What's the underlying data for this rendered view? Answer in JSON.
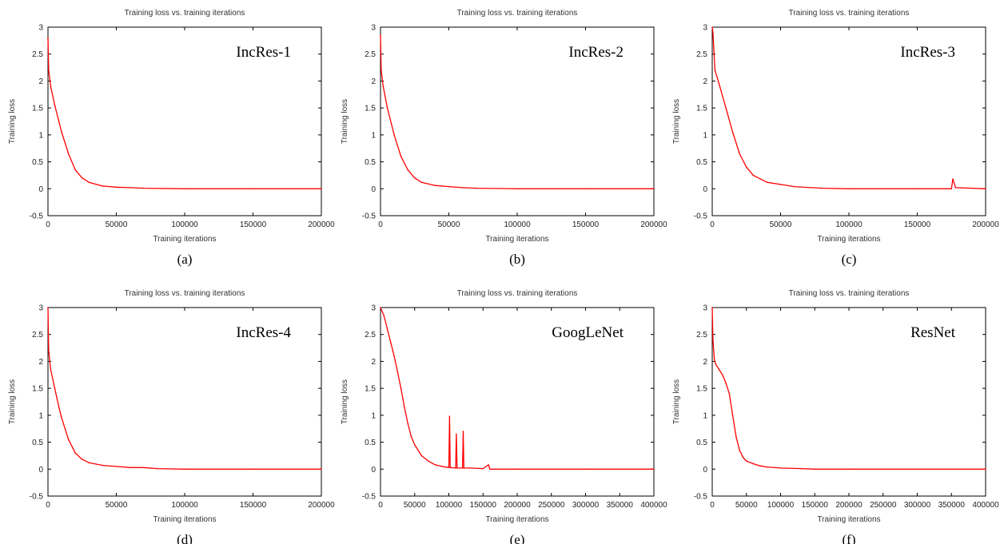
{
  "colors": {
    "series": "#ff0000",
    "axis": "#000000"
  },
  "chart_data": [
    {
      "type": "line",
      "panel": "(a)",
      "title": "Training loss vs. training iterations",
      "xlabel": "Training iterations",
      "ylabel": "Training loss",
      "xlim": [
        0,
        200000
      ],
      "ylim": [
        -0.5,
        3
      ],
      "xticks": [
        0,
        50000,
        100000,
        150000,
        200000
      ],
      "yticks": [
        -0.5,
        0,
        0.5,
        1,
        1.5,
        2,
        2.5,
        3
      ],
      "annotation": "IncRes-1",
      "grid": false,
      "series": [
        {
          "x": [
            0,
            500,
            2000,
            5000,
            8000,
            10000,
            15000,
            20000,
            25000,
            30000,
            40000,
            50000,
            60000,
            70000,
            100000,
            150000,
            200000
          ],
          "y": [
            2.8,
            2.2,
            1.9,
            1.55,
            1.25,
            1.05,
            0.65,
            0.35,
            0.2,
            0.12,
            0.05,
            0.03,
            0.02,
            0.01,
            0.0,
            0.0,
            0.0
          ]
        }
      ]
    },
    {
      "type": "line",
      "panel": "(b)",
      "title": "Training loss vs. training iterations",
      "xlabel": "Training iterations",
      "ylabel": "Training loss",
      "xlim": [
        0,
        200000
      ],
      "ylim": [
        -0.5,
        3
      ],
      "xticks": [
        0,
        50000,
        100000,
        150000,
        200000
      ],
      "yticks": [
        -0.5,
        0,
        0.5,
        1,
        1.5,
        2,
        2.5,
        3
      ],
      "annotation": "IncRes-2",
      "grid": false,
      "series": [
        {
          "x": [
            0,
            500,
            2000,
            5000,
            8000,
            10000,
            15000,
            20000,
            25000,
            30000,
            40000,
            50000,
            60000,
            70000,
            100000,
            150000,
            200000
          ],
          "y": [
            2.85,
            2.2,
            1.9,
            1.5,
            1.2,
            1.0,
            0.6,
            0.35,
            0.2,
            0.12,
            0.06,
            0.04,
            0.02,
            0.01,
            0.0,
            0.0,
            0.0
          ]
        }
      ]
    },
    {
      "type": "line",
      "panel": "(c)",
      "title": "Training loss vs. training iterations",
      "xlabel": "Training iterations",
      "ylabel": "Training loss",
      "xlim": [
        0,
        200000
      ],
      "ylim": [
        -0.5,
        3
      ],
      "xticks": [
        0,
        50000,
        100000,
        150000,
        200000
      ],
      "yticks": [
        -0.5,
        0,
        0.5,
        1,
        1.5,
        2,
        2.5,
        3
      ],
      "annotation": "IncRes-3",
      "grid": false,
      "series": [
        {
          "x": [
            0,
            500,
            2000,
            5000,
            10000,
            15000,
            20000,
            25000,
            30000,
            40000,
            50000,
            60000,
            80000,
            100000,
            150000,
            175000,
            176000,
            178000,
            200000
          ],
          "y": [
            3.0,
            2.9,
            2.2,
            1.95,
            1.5,
            1.05,
            0.65,
            0.4,
            0.25,
            0.12,
            0.08,
            0.04,
            0.01,
            0.0,
            0.0,
            0.0,
            0.18,
            0.02,
            0.0
          ]
        }
      ]
    },
    {
      "type": "line",
      "panel": "(d)",
      "title": "Training loss vs. training iterations",
      "xlabel": "Training iterations",
      "ylabel": "Training loss",
      "xlim": [
        0,
        200000
      ],
      "ylim": [
        -0.5,
        3
      ],
      "xticks": [
        0,
        50000,
        100000,
        150000,
        200000
      ],
      "yticks": [
        -0.5,
        0,
        0.5,
        1,
        1.5,
        2,
        2.5,
        3
      ],
      "annotation": "IncRes-4",
      "grid": false,
      "series": [
        {
          "x": [
            0,
            500,
            2000,
            5000,
            8000,
            10000,
            15000,
            20000,
            25000,
            30000,
            40000,
            50000,
            60000,
            70000,
            80000,
            100000,
            150000,
            200000
          ],
          "y": [
            3.0,
            2.2,
            1.85,
            1.5,
            1.15,
            0.95,
            0.55,
            0.3,
            0.18,
            0.12,
            0.07,
            0.05,
            0.03,
            0.03,
            0.01,
            0.0,
            0.0,
            0.0
          ]
        }
      ]
    },
    {
      "type": "line",
      "panel": "(e)",
      "title": "Training loss vs. training iterations",
      "xlabel": "Training iterations",
      "ylabel": "Training loss",
      "xlim": [
        0,
        400000
      ],
      "ylim": [
        -0.5,
        3
      ],
      "xticks": [
        0,
        50000,
        100000,
        150000,
        200000,
        250000,
        300000,
        350000,
        400000
      ],
      "yticks": [
        -0.5,
        0,
        0.5,
        1,
        1.5,
        2,
        2.5,
        3
      ],
      "annotation": "GoogLeNet",
      "grid": false,
      "series": [
        {
          "x": [
            0,
            5000,
            10000,
            15000,
            20000,
            25000,
            30000,
            35000,
            40000,
            45000,
            50000,
            60000,
            70000,
            80000,
            90000,
            100000,
            101000,
            102000,
            110000,
            111000,
            112000,
            120000,
            121000,
            122000,
            130000,
            150000,
            158000,
            160000,
            200000,
            300000,
            400000
          ],
          "y": [
            3.0,
            2.85,
            2.6,
            2.35,
            2.1,
            1.8,
            1.5,
            1.15,
            0.85,
            0.6,
            0.45,
            0.25,
            0.15,
            0.08,
            0.05,
            0.03,
            0.98,
            0.03,
            0.02,
            0.65,
            0.02,
            0.02,
            0.7,
            0.02,
            0.02,
            0.01,
            0.08,
            0.0,
            0.0,
            0.0,
            0.0
          ]
        }
      ]
    },
    {
      "type": "line",
      "panel": "(f)",
      "title": "Training loss vs. training iterations",
      "xlabel": "Training iterations",
      "ylabel": "Training loss",
      "xlim": [
        0,
        400000
      ],
      "ylim": [
        -0.5,
        3
      ],
      "xticks": [
        0,
        50000,
        100000,
        150000,
        200000,
        250000,
        300000,
        350000,
        400000
      ],
      "yticks": [
        -0.5,
        0,
        0.5,
        1,
        1.5,
        2,
        2.5,
        3
      ],
      "annotation": "ResNet",
      "grid": false,
      "series": [
        {
          "x": [
            0,
            1000,
            3000,
            5000,
            10000,
            15000,
            20000,
            25000,
            30000,
            35000,
            40000,
            45000,
            50000,
            60000,
            70000,
            80000,
            100000,
            130000,
            150000,
            200000,
            400000
          ],
          "y": [
            3.0,
            2.4,
            2.05,
            1.95,
            1.85,
            1.75,
            1.6,
            1.4,
            1.0,
            0.6,
            0.35,
            0.22,
            0.15,
            0.1,
            0.06,
            0.04,
            0.02,
            0.01,
            0.0,
            0.0,
            0.0
          ]
        }
      ]
    }
  ]
}
